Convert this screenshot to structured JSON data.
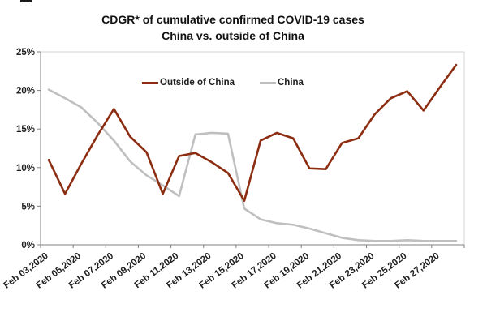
{
  "title": {
    "line1": "CDGR* of cumulative confirmed COVID-19 cases",
    "line2": "China vs. outside of China"
  },
  "chart_data": {
    "type": "line",
    "title": "CDGR* of cumulative confirmed COVID-19 cases — China vs. outside of China",
    "x": [
      "Feb 03,2020",
      "Feb 04,2020",
      "Feb 05,2020",
      "Feb 06,2020",
      "Feb 07,2020",
      "Feb 08,2020",
      "Feb 09,2020",
      "Feb 10,2020",
      "Feb 11,2020",
      "Feb 12,2020",
      "Feb 13,2020",
      "Feb 14,2020",
      "Feb 15,2020",
      "Feb 16,2020",
      "Feb 17,2020",
      "Feb 18,2020",
      "Feb 19,2020",
      "Feb 20,2020",
      "Feb 21,2020",
      "Feb 22,2020",
      "Feb 23,2020",
      "Feb 24,2020",
      "Feb 25,2020",
      "Feb 26,2020",
      "Feb 27,2020",
      "Feb 28,2020"
    ],
    "x_tick_labels": [
      "Feb 03,2020",
      "Feb 05,2020",
      "Feb 07,2020",
      "Feb 09,2020",
      "Feb 11,2020",
      "Feb 13,2020",
      "Feb 15,2020",
      "Feb 17,2020",
      "Feb 19,2020",
      "Feb 21,2020",
      "Feb 23,2020",
      "Feb 25,2020",
      "Feb 27,2020"
    ],
    "series": [
      {
        "name": "Outside of China",
        "color": "#8C2D12",
        "values": [
          11.0,
          6.6,
          10.5,
          14.2,
          17.6,
          14.0,
          12.0,
          6.6,
          11.5,
          11.9,
          10.7,
          9.3,
          5.7,
          13.5,
          14.5,
          13.8,
          9.9,
          9.8,
          13.2,
          13.8,
          16.9,
          19.0,
          19.9,
          17.4,
          20.4,
          23.3
        ]
      },
      {
        "name": "China",
        "color": "#BFBFBF",
        "values": [
          20.1,
          19.0,
          17.8,
          15.8,
          13.5,
          10.8,
          9.0,
          7.7,
          6.3,
          14.3,
          14.5,
          14.4,
          4.7,
          3.3,
          2.8,
          2.6,
          2.1,
          1.5,
          0.9,
          0.6,
          0.5,
          0.5,
          0.6,
          0.5,
          0.5,
          0.5
        ]
      }
    ],
    "ylim": [
      0,
      25
    ],
    "ytick_step": 5,
    "y_tick_labels": [
      "0%",
      "5%",
      "10%",
      "15%",
      "20%",
      "25%"
    ],
    "grid": false,
    "legend_position": "top-inside",
    "xlabel": "",
    "ylabel": ""
  },
  "style_colors": {
    "axis": "#808080",
    "plot_border": "#D6D6D6",
    "tick_text": "#1f1f1f"
  }
}
